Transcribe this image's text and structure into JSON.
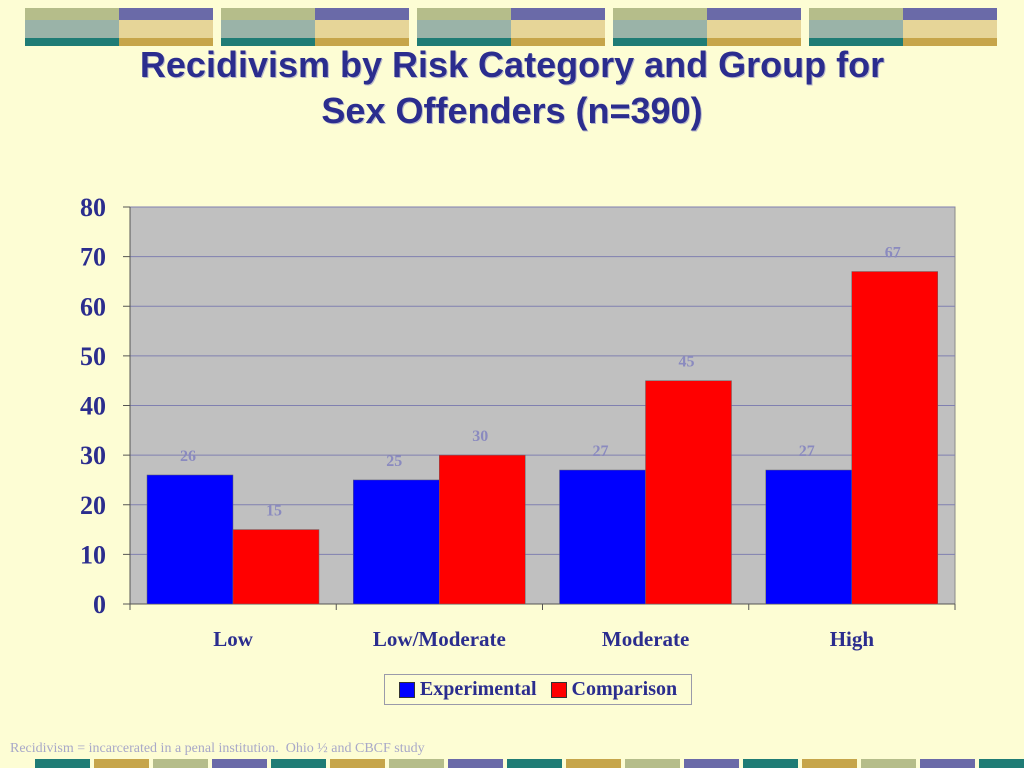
{
  "slide": {
    "title_line1": "Recidivism by Risk Category and Group for",
    "title_line2": "Sex Offenders (n=390)",
    "footnote": "Recidivism = incarcerated in a penal institution.  Ohio ½ and CBCF study"
  },
  "colors": {
    "background": "#fdfdd4",
    "title": "#2b2d8e",
    "plot_area": "#c0c0c0",
    "experimental": "#0000ff",
    "comparison": "#ff0000",
    "data_label": "#8a8abf",
    "gridline": "#8080b0"
  },
  "chart_data": {
    "type": "bar",
    "title": "",
    "xlabel": "",
    "ylabel": "",
    "categories": [
      "Low",
      "Low/Moderate",
      "Moderate",
      "High"
    ],
    "series": [
      {
        "name": "Experimental",
        "values": [
          26,
          25,
          27,
          27
        ]
      },
      {
        "name": "Comparison",
        "values": [
          15,
          30,
          45,
          67
        ]
      }
    ],
    "ylim": [
      0,
      80
    ],
    "yticks": [
      "0",
      "10",
      "20",
      "30",
      "40",
      "50",
      "60",
      "70",
      "80"
    ],
    "grid": true,
    "legend_position": "bottom"
  }
}
